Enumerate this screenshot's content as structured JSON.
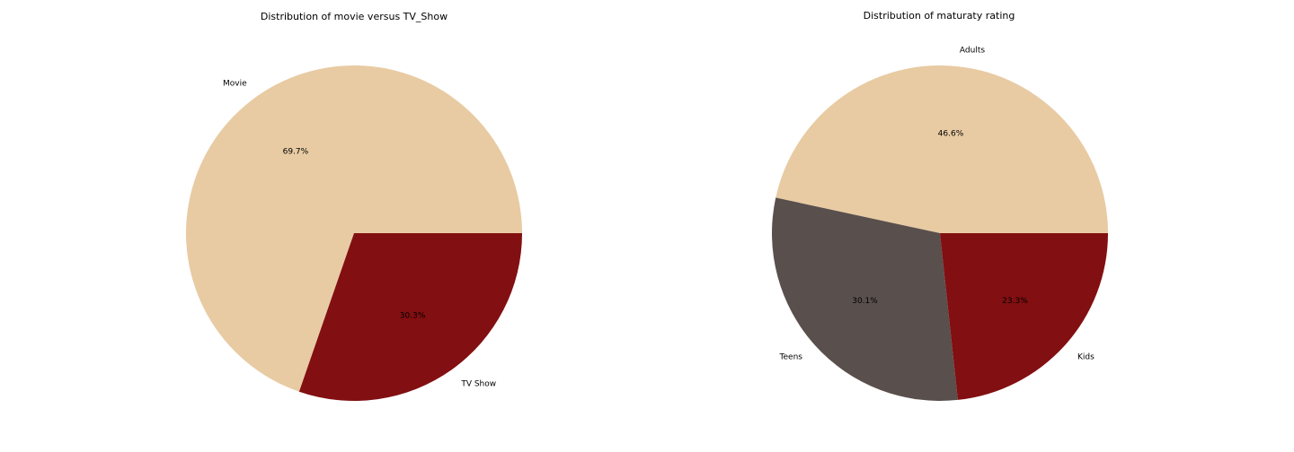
{
  "chart_data": [
    {
      "type": "pie",
      "title": "Distribution of movie versus TV_Show",
      "categories": [
        "Movie",
        "TV Show"
      ],
      "values": [
        69.7,
        30.3
      ],
      "value_labels": [
        "69.7%",
        "30.3%"
      ],
      "colors": [
        "#e8cba3",
        "#820f11"
      ],
      "start_angle_deg": 0,
      "direction": "counterclockwise",
      "legend": "none"
    },
    {
      "type": "pie",
      "title": "Distribution of maturaty rating",
      "categories": [
        "Adults",
        "Teens",
        "Kids"
      ],
      "values": [
        46.6,
        30.1,
        23.3
      ],
      "value_labels": [
        "46.6%",
        "30.1%",
        "23.3%"
      ],
      "colors": [
        "#e8cba3",
        "#594f4c",
        "#820f11"
      ],
      "start_angle_deg": 0,
      "direction": "counterclockwise",
      "legend": "none"
    }
  ]
}
